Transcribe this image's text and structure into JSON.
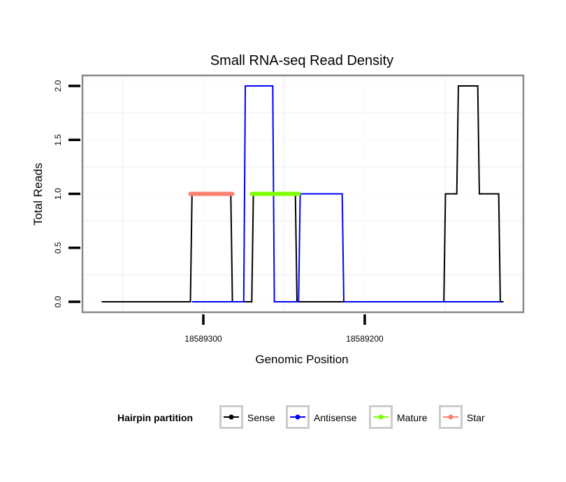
{
  "chart_data": {
    "type": "line",
    "title": "Small RNA-seq Read Density",
    "xlabel": "Genomic Position",
    "ylabel": "Total Reads",
    "x_reversed": true,
    "xlim": [
      18589363,
      18589113
    ],
    "ylim": [
      0,
      2
    ],
    "x_ticks": [
      18589300,
      18589200
    ],
    "x_tick_labels": [
      "18589300",
      "18589200"
    ],
    "y_ticks": [
      0,
      0.5,
      1,
      1.5,
      2
    ],
    "y_tick_labels": [
      "0.0",
      "0.5",
      "1.0",
      "1.5",
      "2.0"
    ],
    "grid": true,
    "legend": {
      "title": "Hairpin partition",
      "position": "bottom",
      "entries": [
        {
          "label": "Sense",
          "color": "#000000"
        },
        {
          "label": "Antisense",
          "color": "#0000ff"
        },
        {
          "label": "Mature",
          "color": "#80ff00"
        },
        {
          "label": "Star",
          "color": "#fa8072"
        }
      ]
    },
    "series": [
      {
        "name": "Sense",
        "color": "#000000",
        "x": [
          18589363,
          18589308,
          18589307,
          18589283,
          18589282,
          18589270,
          18589269,
          18589243,
          18589242,
          18589151,
          18589150,
          18589143,
          18589142,
          18589130,
          18589129,
          18589117,
          18589116,
          18589114
        ],
        "y": [
          0,
          0,
          1,
          1,
          0,
          0,
          1,
          1,
          0,
          0,
          1,
          1,
          2,
          2,
          1,
          1,
          0,
          0
        ]
      },
      {
        "name": "Antisense",
        "color": "#0000ff",
        "x": [
          18589307,
          18589275,
          18589274,
          18589257,
          18589256,
          18589241,
          18589240,
          18589214,
          18589213,
          18589151,
          18589116
        ],
        "y": [
          0,
          0,
          2,
          2,
          0,
          0,
          1,
          1,
          0,
          0,
          0
        ]
      },
      {
        "name": "Mature",
        "color": "#80ff00",
        "x": [
          18589270,
          18589241
        ],
        "y": [
          1,
          1
        ]
      },
      {
        "name": "Star",
        "color": "#fa8072",
        "x": [
          18589308,
          18589282
        ],
        "y": [
          1,
          1
        ]
      }
    ]
  }
}
